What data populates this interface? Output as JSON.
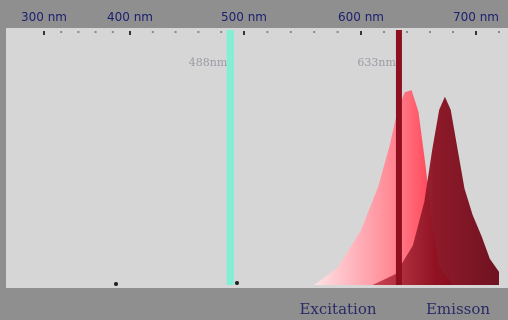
{
  "chart_data": {
    "type": "area",
    "x_axis_ticks": [
      "300 nm",
      "400 nm",
      "500 nm",
      "600 nm",
      "700 nm"
    ],
    "x_axis_tick_values": [
      300,
      400,
      500,
      600,
      700
    ],
    "xlim": [
      280,
      720
    ],
    "ylim": [
      0,
      100
    ],
    "grid": false,
    "lasers": [
      {
        "label": "488nm",
        "wavelength": 488,
        "color": "#7ff0d6"
      },
      {
        "label": "633nm",
        "wavelength": 633,
        "color": "#8e1020"
      }
    ],
    "series": [
      {
        "name": "Excitation",
        "color": "#ff3a4e",
        "x": [
          560,
          580,
          600,
          615,
          625,
          632,
          638,
          644,
          650,
          656,
          662,
          668,
          680
        ],
        "y": [
          0,
          8,
          25,
          45,
          64,
          80,
          88,
          89,
          79,
          55,
          27,
          8,
          0
        ]
      },
      {
        "name": "Emisson",
        "color": "#8a1020",
        "x": [
          610,
          630,
          645,
          655,
          662,
          668,
          673,
          678,
          684,
          690,
          697,
          705,
          712,
          720
        ],
        "y": [
          0,
          5,
          18,
          38,
          62,
          80,
          86,
          80,
          62,
          44,
          32,
          22,
          12,
          6
        ]
      }
    ]
  }
}
